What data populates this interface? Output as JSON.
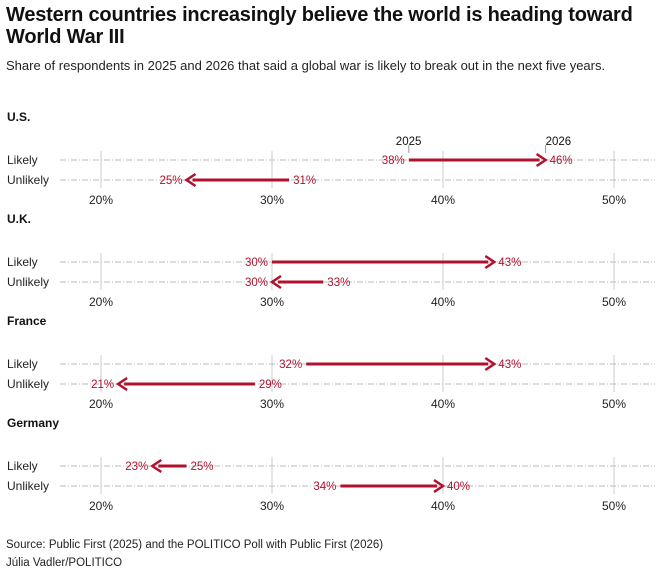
{
  "title": "Western countries increasingly believe the world is heading toward World War III",
  "subtitle": "Share of respondents in 2025 and 2026 that said a global war is likely to break out in the next five years.",
  "source": "Source: Public First (2025) and the POLITICO Poll with Public First (2026)",
  "credit": "Júlia Vadler/POLITICO",
  "colors": {
    "arrow": "#b0122e",
    "label": "#b0122e"
  },
  "chart_data": {
    "type": "arrow-dot-plot",
    "legend": {
      "start": "2025",
      "end": "2026"
    },
    "xlim": [
      17.5,
      52.5
    ],
    "xticks": [
      20,
      30,
      40,
      50
    ],
    "xtick_labels": [
      "20%",
      "30%",
      "40%",
      "50%"
    ],
    "grid": true,
    "categories": [
      "Likely",
      "Unlikely"
    ],
    "panels": [
      {
        "name": "U.S.",
        "rows": [
          {
            "label": "Likely",
            "v2025": 38,
            "v2026": 46
          },
          {
            "label": "Unlikely",
            "v2025": 31,
            "v2026": 25
          }
        ]
      },
      {
        "name": "U.K.",
        "rows": [
          {
            "label": "Likely",
            "v2025": 30,
            "v2026": 43
          },
          {
            "label": "Unlikely",
            "v2025": 33,
            "v2026": 30
          }
        ]
      },
      {
        "name": "France",
        "rows": [
          {
            "label": "Likely",
            "v2025": 32,
            "v2026": 43
          },
          {
            "label": "Unlikely",
            "v2025": 29,
            "v2026": 21
          }
        ]
      },
      {
        "name": "Germany",
        "rows": [
          {
            "label": "Likely",
            "v2025": 25,
            "v2026": 23
          },
          {
            "label": "Unlikely",
            "v2025": 34,
            "v2026": 40
          }
        ]
      }
    ]
  }
}
